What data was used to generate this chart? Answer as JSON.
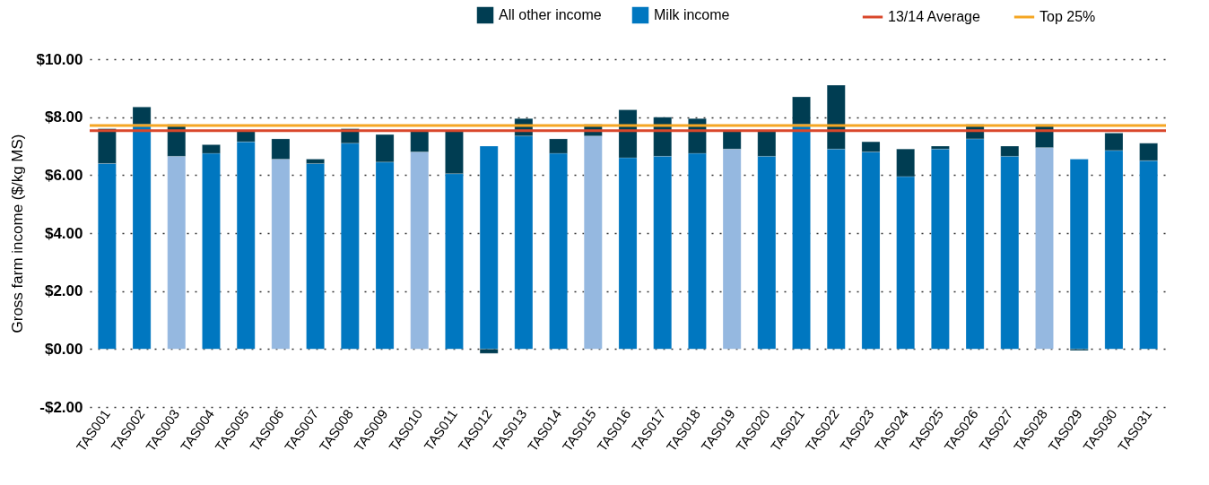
{
  "chart_data": {
    "type": "bar",
    "stacked": true,
    "ylabel": "Gross farm income ($/kg MS)",
    "categories": [
      "TAS001",
      "TAS002",
      "TAS003",
      "TAS004",
      "TAS005",
      "TAS006",
      "TAS007",
      "TAS008",
      "TAS009",
      "TAS010",
      "TAS011",
      "TAS012",
      "TAS013",
      "TAS014",
      "TAS015",
      "TAS016",
      "TAS017",
      "TAS018",
      "TAS019",
      "TAS020",
      "TAS021",
      "TAS022",
      "TAS023",
      "TAS024",
      "TAS025",
      "TAS026",
      "TAS027",
      "TAS028",
      "TAS029",
      "TAS030",
      "TAS031"
    ],
    "series": [
      {
        "name": "Milk income",
        "color": "#0077c0",
        "colors": [
          "#0077c0",
          "#0077c0",
          "#95b8e0",
          "#0077c0",
          "#0077c0",
          "#95b8e0",
          "#0077c0",
          "#0077c0",
          "#0077c0",
          "#95b8e0",
          "#0077c0",
          "#0077c0",
          "#0077c0",
          "#0077c0",
          "#95b8e0",
          "#0077c0",
          "#0077c0",
          "#0077c0",
          "#95b8e0",
          "#0077c0",
          "#0077c0",
          "#0077c0",
          "#0077c0",
          "#0077c0",
          "#0077c0",
          "#0077c0",
          "#0077c0",
          "#95b8e0",
          "#0077c0",
          "#0077c0",
          "#0077c0"
        ],
        "values": [
          6.4,
          7.75,
          6.65,
          6.75,
          7.15,
          6.55,
          6.4,
          7.1,
          6.45,
          6.8,
          6.05,
          7.0,
          7.35,
          6.75,
          7.35,
          6.6,
          6.65,
          6.75,
          6.9,
          6.65,
          7.75,
          6.9,
          6.8,
          5.95,
          6.9,
          7.25,
          6.65,
          6.95,
          6.55,
          6.85,
          6.5
        ]
      },
      {
        "name": "All other income",
        "color": "#003d52",
        "values": [
          1.2,
          0.6,
          1.1,
          0.3,
          0.4,
          0.7,
          0.15,
          0.5,
          0.95,
          0.75,
          1.5,
          -0.15,
          0.6,
          0.5,
          0.4,
          1.65,
          1.35,
          1.2,
          0.65,
          0.9,
          0.95,
          2.2,
          0.35,
          0.95,
          0.1,
          0.5,
          0.35,
          0.8,
          -0.05,
          0.6,
          0.6
        ]
      }
    ],
    "ref_lines": [
      {
        "axis": "y",
        "value": 7.53,
        "label": "13/14 Average",
        "color": "#d9472b"
      },
      {
        "axis": "y",
        "value": 7.71,
        "label": "Top 25%",
        "color": "#f5a623"
      }
    ],
    "ylim": [
      -2,
      10
    ],
    "yticks": [
      {
        "value": -2,
        "label": "-$2.00"
      },
      {
        "value": 0,
        "label": "$0.00"
      },
      {
        "value": 2,
        "label": "$2.00"
      },
      {
        "value": 4,
        "label": "$4.00"
      },
      {
        "value": 6,
        "label": "$6.00"
      },
      {
        "value": 8,
        "label": "$8.00"
      },
      {
        "value": 10,
        "label": "$10.00"
      }
    ],
    "grid": "y",
    "legend": "top right"
  }
}
